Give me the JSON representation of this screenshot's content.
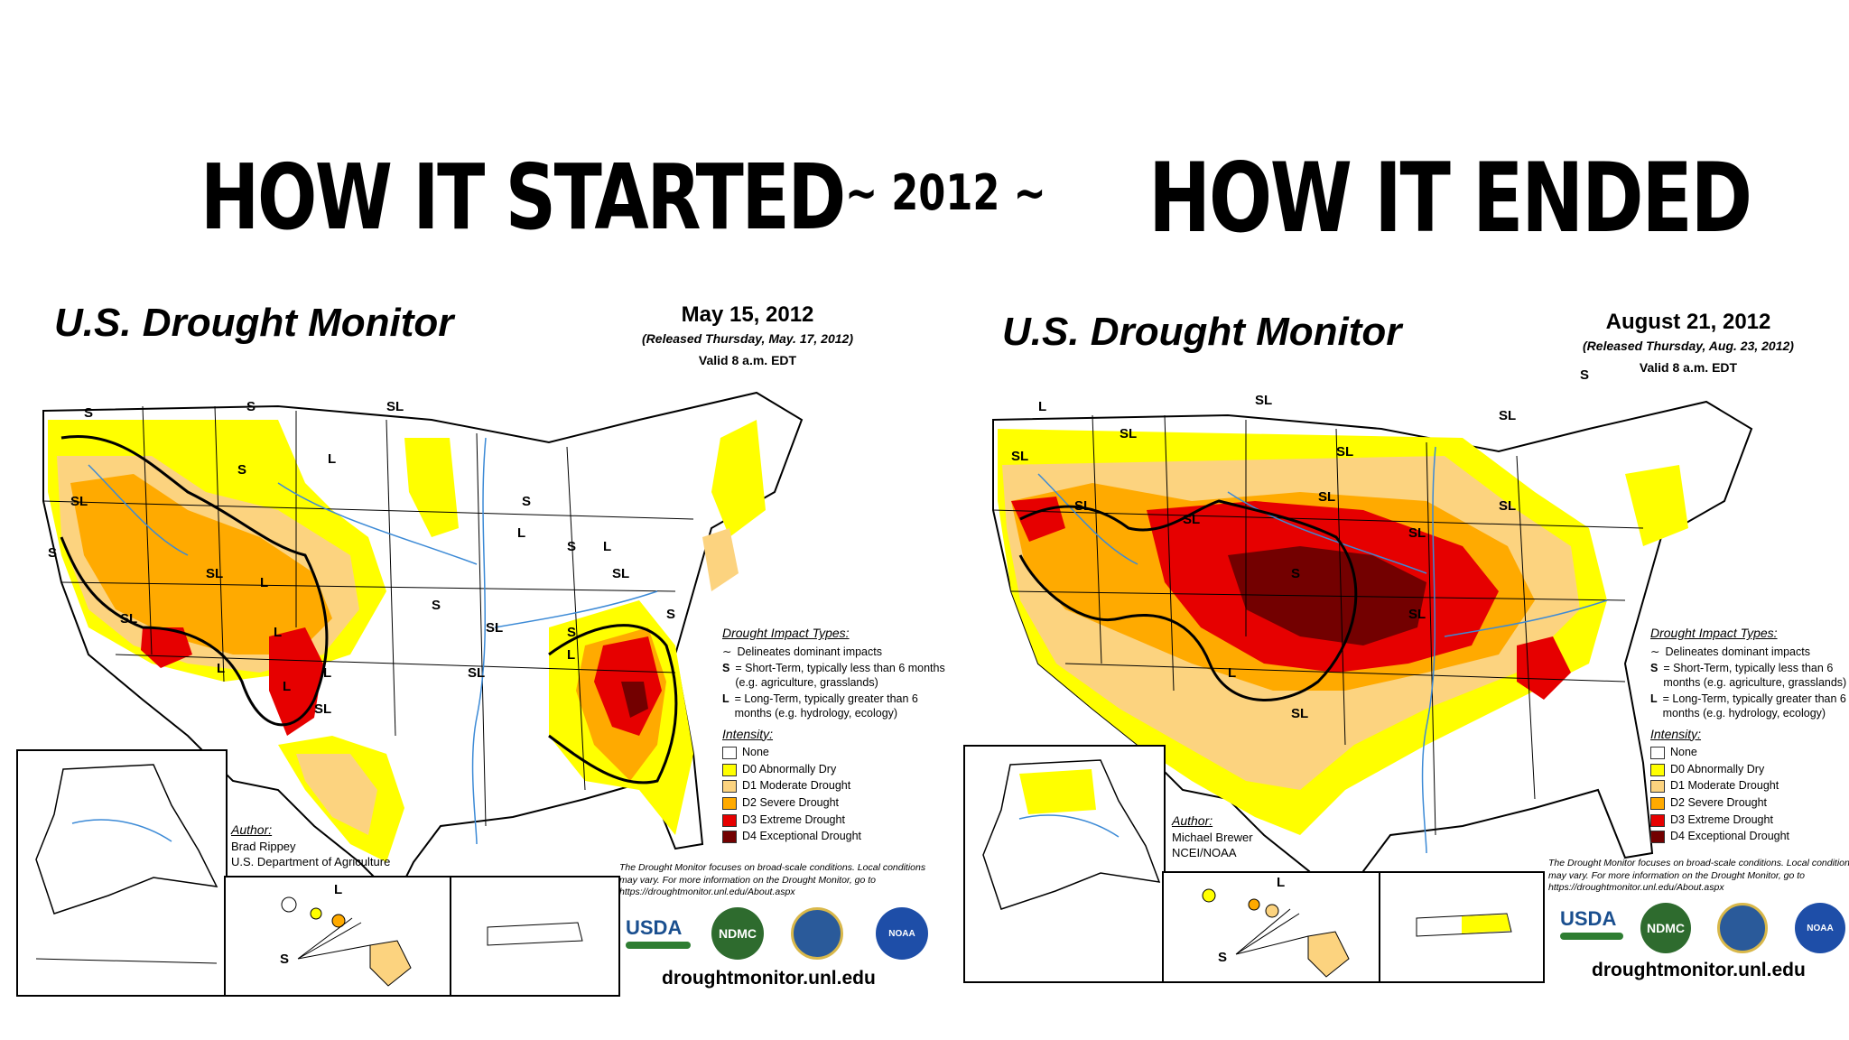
{
  "headlines": {
    "left": "HOW IT STARTED",
    "year": "~ 2012 ~",
    "right": "HOW IT ENDED"
  },
  "colors": {
    "none": "#ffffff",
    "d0": "#ffff00",
    "d1": "#fcd37f",
    "d2": "#ffaa00",
    "d3": "#e60000",
    "d4": "#730000",
    "water": "#3c8ad6"
  },
  "legend": {
    "impact_header": "Drought Impact Types:",
    "impact_line": "Delineates dominant impacts",
    "short_term_key": "S",
    "short_term": "= Short-Term, typically less than 6 months (e.g. agriculture, grasslands)",
    "long_term_key": "L",
    "long_term": "= Long-Term, typically greater than 6 months (e.g. hydrology, ecology)",
    "intensity_header": "Intensity:",
    "categories": [
      {
        "label": "None",
        "color": "#ffffff"
      },
      {
        "label": "D0 Abnormally Dry",
        "color": "#ffff00"
      },
      {
        "label": "D1 Moderate Drought",
        "color": "#fcd37f"
      },
      {
        "label": "D2 Severe Drought",
        "color": "#ffaa00"
      },
      {
        "label": "D3 Extreme Drought",
        "color": "#e60000"
      },
      {
        "label": "D4 Exceptional Drought",
        "color": "#730000"
      }
    ],
    "author_label": "Author:",
    "disclaimer": "The Drought Monitor focuses on broad-scale conditions. Local conditions may vary. For more information on the Drought Monitor, go to https://droughtmonitor.unl.edu/About.aspx",
    "url": "droughtmonitor.unl.edu",
    "usda": "USDA",
    "ndmc": "NDMC",
    "noaa": "NOAA"
  },
  "maps": {
    "left": {
      "title": "U.S. Drought Monitor",
      "date": "May 15, 2012",
      "released": "(Released Thursday, May. 17, 2012)",
      "valid": "Valid 8 a.m. EDT",
      "author_name": "Brad Rippey",
      "author_org": "U.S. Department of Agriculture",
      "impact_labels": [
        "S",
        "SL",
        "S",
        "S",
        "L",
        "SL",
        "L",
        "S",
        "SL",
        "SL",
        "L",
        "L",
        "L",
        "L",
        "SL",
        "S",
        "SL",
        "SL",
        "SL",
        "L",
        "S",
        "S",
        "L",
        "S",
        "L",
        "S"
      ]
    },
    "right": {
      "title": "U.S. Drought Monitor",
      "date": "August 21, 2012",
      "released": "(Released Thursday, Aug. 23, 2012)",
      "valid": "Valid 8 a.m. EDT",
      "author_name": "Michael Brewer",
      "author_org": "NCEI/NOAA",
      "impact_labels": [
        "L",
        "SL",
        "SL",
        "SL",
        "SL",
        "S",
        "SL",
        "SL",
        "SL",
        "SL",
        "SL",
        "SL",
        "L",
        "SL",
        "SL",
        "S"
      ]
    }
  }
}
